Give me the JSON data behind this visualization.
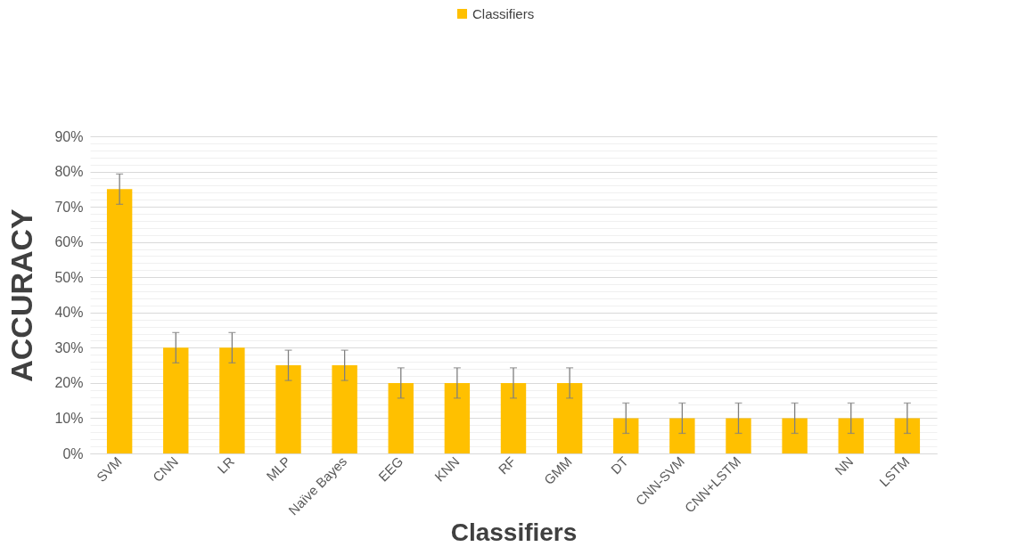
{
  "chart_data": {
    "type": "bar",
    "xlabel": "Classifiers",
    "ylabel": "ACCURACY",
    "categories": [
      "SVM",
      "CNN",
      "LR",
      "MLP",
      "Naïve Bayes",
      "EEG",
      "KNN",
      "RF",
      "GMM",
      "DT",
      "CNN-SVM",
      "CNN+LSTM",
      null,
      "NN",
      "LSTM"
    ],
    "series": [
      {
        "name": "Classifiers",
        "color": "#ffc000",
        "values": [
          75,
          30,
          30,
          25,
          25,
          20,
          20,
          20,
          20,
          10,
          10,
          10,
          10,
          10,
          10
        ],
        "errors": [
          4.3,
          4.3,
          4.3,
          4.3,
          4.3,
          4.3,
          4.3,
          4.3,
          4.3,
          4.3,
          4.3,
          4.3,
          4.3,
          4.3,
          4.3
        ]
      }
    ],
    "ylim": [
      0,
      90
    ],
    "yticks": [
      {
        "value": 0,
        "label": "0%"
      },
      {
        "value": 2,
        "label": null
      },
      {
        "value": 4,
        "label": null
      },
      {
        "value": 6,
        "label": null
      },
      {
        "value": 8,
        "label": null
      },
      {
        "value": 10,
        "label": "10%"
      },
      {
        "value": 12,
        "label": null
      },
      {
        "value": 14,
        "label": null
      },
      {
        "value": 16,
        "label": null
      },
      {
        "value": 18,
        "label": null
      },
      {
        "value": 20,
        "label": "20%"
      },
      {
        "value": 22,
        "label": null
      },
      {
        "value": 24,
        "label": null
      },
      {
        "value": 26,
        "label": null
      },
      {
        "value": 28,
        "label": null
      },
      {
        "value": 30,
        "label": "30%"
      },
      {
        "value": 32,
        "label": null
      },
      {
        "value": 34,
        "label": null
      },
      {
        "value": 36,
        "label": null
      },
      {
        "value": 38,
        "label": null
      },
      {
        "value": 40,
        "label": "40%"
      },
      {
        "value": 42,
        "label": null
      },
      {
        "value": 44,
        "label": null
      },
      {
        "value": 46,
        "label": null
      },
      {
        "value": 48,
        "label": null
      },
      {
        "value": 50,
        "label": "50%"
      },
      {
        "value": 52,
        "label": null
      },
      {
        "value": 54,
        "label": null
      },
      {
        "value": 56,
        "label": null
      },
      {
        "value": 58,
        "label": null
      },
      {
        "value": 60,
        "label": "60%"
      },
      {
        "value": 62,
        "label": null
      },
      {
        "value": 64,
        "label": null
      },
      {
        "value": 66,
        "label": null
      },
      {
        "value": 68,
        "label": null
      },
      {
        "value": 70,
        "label": "70%"
      },
      {
        "value": 72,
        "label": null
      },
      {
        "value": 74,
        "label": null
      },
      {
        "value": 76,
        "label": null
      },
      {
        "value": 78,
        "label": null
      },
      {
        "value": 80,
        "label": "80%"
      },
      {
        "value": 82,
        "label": null
      },
      {
        "value": 84,
        "label": null
      },
      {
        "value": 86,
        "label": null
      },
      {
        "value": 88,
        "label": null
      },
      {
        "value": 90,
        "label": "90%"
      }
    ],
    "grid": true,
    "legend": "top"
  }
}
